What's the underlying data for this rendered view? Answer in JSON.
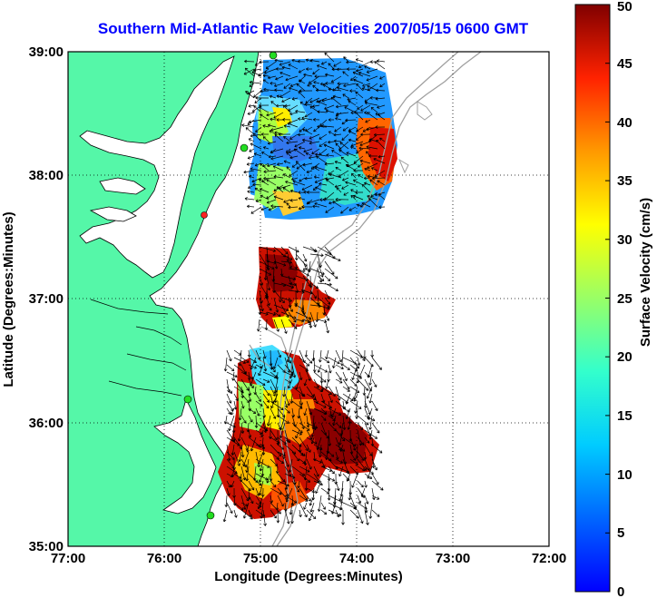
{
  "title": "Southern Mid-Atlantic Raw Velocities 2007/05/15 0600 GMT",
  "xlabel": "Longitude (Degrees:Minutes)",
  "ylabel": "Latitude (Degrees:Minutes)",
  "x_ticks": [
    "77:00",
    "76:00",
    "75:00",
    "74:00",
    "73:00",
    "72:00"
  ],
  "y_ticks": [
    "39:00",
    "38:00",
    "37:00",
    "36:00",
    "35:00"
  ],
  "colorbar": {
    "label": "Surface Velocity (cm/s)",
    "ticks": [
      "0",
      "5",
      "10",
      "15",
      "20",
      "25",
      "30",
      "35",
      "40",
      "45",
      "50"
    ],
    "range": [
      0,
      50
    ],
    "colormap": "jet"
  },
  "colors": {
    "land": "#55f7a8",
    "title": "#0000ff",
    "coastline": "#000000",
    "bathymetry": "#a0a0a0",
    "stations": "#22dd22",
    "station_alt": "#ff2222"
  },
  "map": {
    "lon_range": [
      -77,
      -72
    ],
    "lat_range": [
      35,
      39
    ],
    "grid": true
  }
}
